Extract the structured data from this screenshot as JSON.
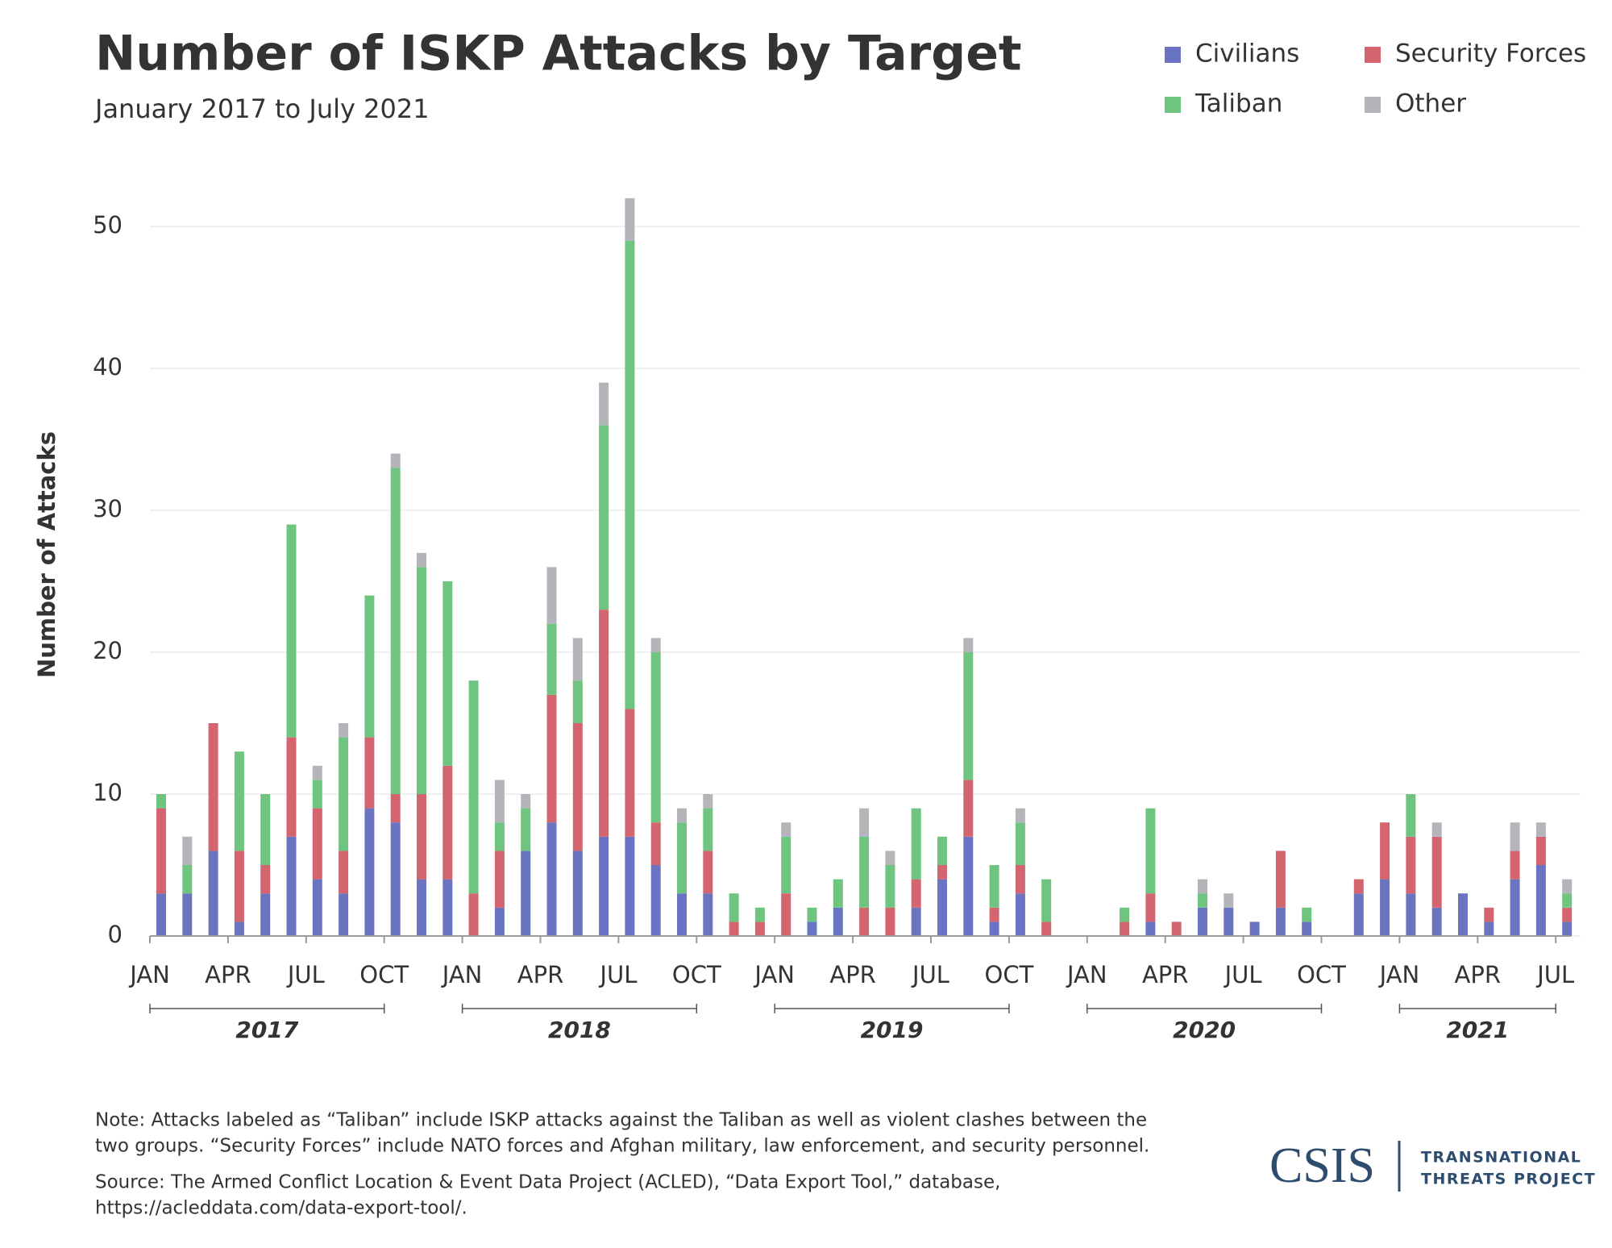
{
  "chart_data": {
    "type": "bar",
    "stacked": true,
    "title": "Number of ISKP Attacks by Target",
    "subtitle": "January 2017 to July 2021",
    "y_label": "Number of Attacks",
    "categories": [
      "JAN",
      null,
      null,
      "APR",
      null,
      null,
      "JUL",
      null,
      null,
      "OCT",
      null,
      null,
      "JAN",
      null,
      null,
      "APR",
      null,
      null,
      "JUL",
      null,
      null,
      "OCT",
      null,
      null,
      "JAN",
      null,
      null,
      "APR",
      null,
      null,
      "JUL",
      null,
      null,
      "OCT",
      null,
      null,
      "JAN",
      null,
      null,
      "APR",
      null,
      null,
      "JUL",
      null,
      null,
      "OCT",
      null,
      null,
      "JAN",
      null,
      null,
      "APR",
      null,
      null,
      "JUL"
    ],
    "years": [
      "2017",
      "2018",
      "2019",
      "2020",
      "2021"
    ],
    "series": [
      {
        "name": "Civilians",
        "color": "#6b74c1",
        "values": [
          3,
          3,
          6,
          1,
          3,
          7,
          4,
          3,
          9,
          8,
          4,
          4,
          0,
          2,
          6,
          8,
          6,
          7,
          7,
          5,
          3,
          3,
          0,
          0,
          0,
          1,
          2,
          0,
          0,
          2,
          4,
          7,
          1,
          3,
          0,
          0,
          0,
          0,
          1,
          0,
          2,
          2,
          1,
          2,
          1,
          0,
          3,
          4,
          3,
          2,
          3,
          1,
          4,
          5,
          1
        ]
      },
      {
        "name": "Security Forces",
        "color": "#d4646f",
        "values": [
          6,
          0,
          9,
          5,
          2,
          7,
          5,
          3,
          5,
          2,
          6,
          8,
          3,
          4,
          0,
          9,
          9,
          16,
          9,
          3,
          0,
          3,
          1,
          1,
          3,
          0,
          0,
          2,
          2,
          2,
          1,
          4,
          1,
          2,
          1,
          0,
          0,
          1,
          2,
          1,
          0,
          0,
          0,
          4,
          0,
          0,
          1,
          4,
          4,
          5,
          0,
          1,
          2,
          2,
          1
        ]
      },
      {
        "name": "Taliban",
        "color": "#6fc47f",
        "values": [
          1,
          2,
          0,
          7,
          5,
          15,
          2,
          8,
          10,
          23,
          16,
          13,
          15,
          2,
          3,
          5,
          3,
          13,
          33,
          12,
          5,
          3,
          2,
          1,
          4,
          1,
          2,
          5,
          3,
          5,
          2,
          9,
          3,
          3,
          3,
          0,
          0,
          1,
          6,
          0,
          1,
          0,
          0,
          0,
          1,
          0,
          0,
          0,
          3,
          0,
          0,
          0,
          0,
          0,
          1
        ]
      },
      {
        "name": "Other",
        "color": "#b3b5ba",
        "values": [
          0,
          2,
          0,
          0,
          0,
          0,
          1,
          1,
          0,
          1,
          1,
          0,
          0,
          3,
          1,
          4,
          3,
          3,
          3,
          1,
          1,
          1,
          0,
          0,
          1,
          0,
          0,
          2,
          1,
          0,
          0,
          1,
          0,
          1,
          0,
          0,
          0,
          0,
          0,
          0,
          1,
          1,
          0,
          0,
          0,
          0,
          0,
          0,
          0,
          1,
          0,
          0,
          2,
          1,
          1
        ]
      }
    ],
    "ylim": [
      0,
      50
    ],
    "yticks": [
      0,
      10,
      20,
      30,
      40,
      50
    ],
    "grid": true,
    "legend_position": "top-right"
  },
  "notes": {
    "note": [
      "Note: Attacks labeled as “Taliban” include ISKP attacks against the Taliban as well as violent clashes between the",
      "two groups. “Security Forces” include NATO forces and Afghan military, law enforcement, and security personnel."
    ],
    "source": [
      "Source: The Armed Conflict Location & Event Data Project (ACLED), “Data Export Tool,” database,",
      "https://acleddata.com/data-export-tool/."
    ]
  },
  "logo": {
    "name": "CSIS",
    "line1": "TRANSNATIONAL",
    "line2": "THREATS PROJECT"
  }
}
